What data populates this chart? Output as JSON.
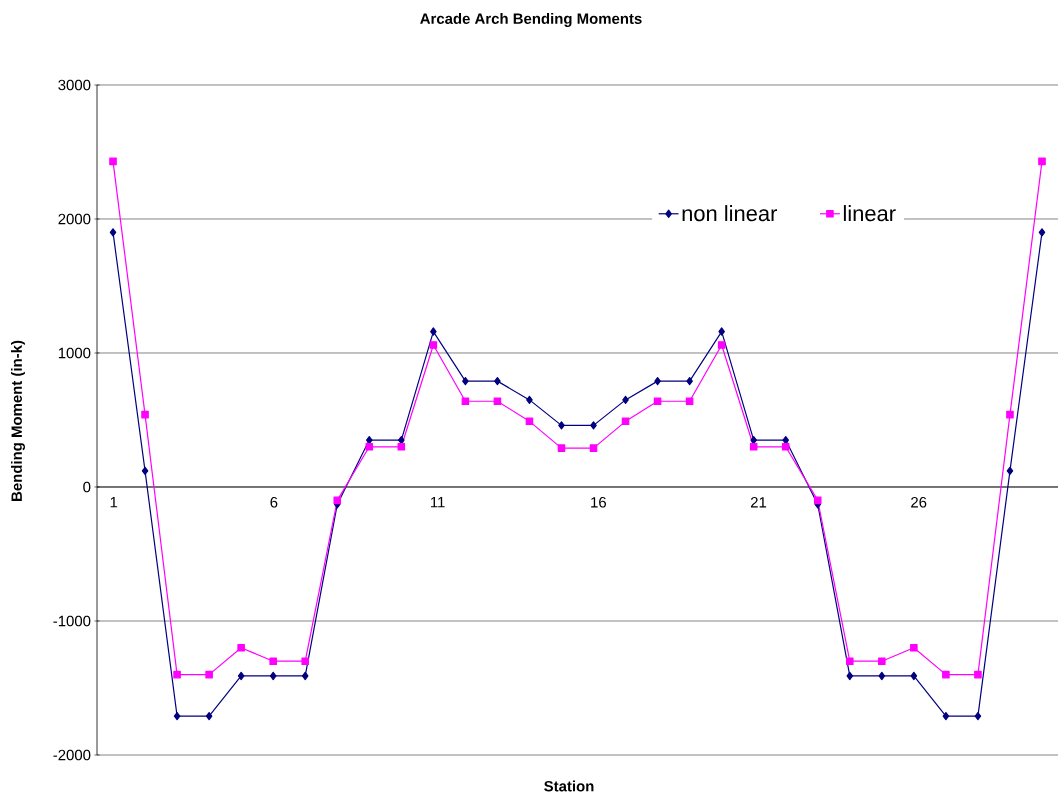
{
  "chart_data": {
    "type": "line",
    "title": "Arcade Arch Bending Moments",
    "xlabel": "Station",
    "ylabel": "Bending Moment (in-k)",
    "categories": [
      "1",
      null,
      null,
      null,
      null,
      "6",
      null,
      null,
      null,
      null,
      "11",
      null,
      null,
      null,
      null,
      "16",
      null,
      null,
      null,
      null,
      "21",
      null,
      null,
      null,
      null,
      "26",
      null,
      null,
      null,
      null
    ],
    "series": [
      {
        "name": "non linear",
        "color": "#000080",
        "marker": "diamond",
        "values": [
          1900,
          120,
          -1710,
          -1710,
          -1410,
          -1410,
          -1410,
          -130,
          350,
          350,
          1160,
          790,
          790,
          650,
          460,
          460,
          650,
          790,
          790,
          1160,
          350,
          350,
          -130,
          -1410,
          -1410,
          -1410,
          -1710,
          -1710,
          120,
          1900
        ]
      },
      {
        "name": "linear",
        "color": "#ff00ff",
        "marker": "square",
        "values": [
          2430,
          540,
          -1400,
          -1400,
          -1200,
          -1300,
          -1300,
          -100,
          300,
          300,
          1060,
          640,
          640,
          490,
          290,
          290,
          490,
          640,
          640,
          1060,
          300,
          300,
          -100,
          -1300,
          -1300,
          -1200,
          -1400,
          -1400,
          540,
          2430
        ]
      }
    ],
    "ylim": [
      -2000,
      3000
    ],
    "yticks": [
      -2000,
      -1000,
      0,
      1000,
      2000,
      3000
    ],
    "grid": "y",
    "legend": "top right"
  }
}
